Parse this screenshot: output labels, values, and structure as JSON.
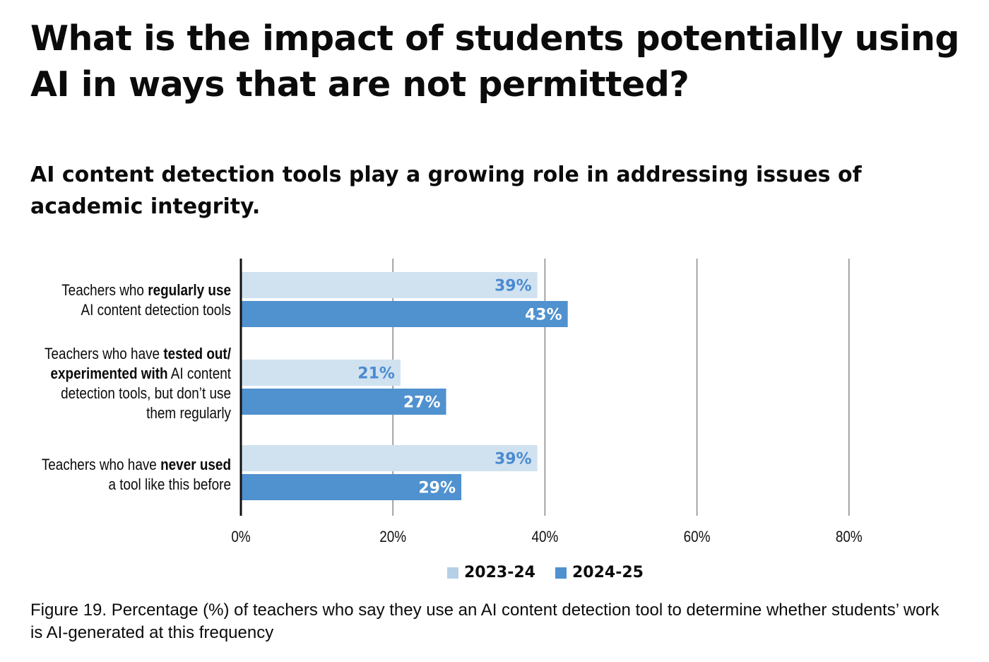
{
  "title": "What is the impact of students potentially using AI in ways that are not permitted?",
  "subtitle": "AI content detection tools play a growing role in addressing issues of academic integrity.",
  "caption": "Figure 19. Percentage (%) of teachers who say they use an AI content detection tool to determine whether students’ work is AI-generated at this frequency",
  "colors": {
    "series_2023_24": "#d0e2f0",
    "series_2024_25": "#5091cf",
    "legend_2023_24": "#b5cfe6",
    "label_light": "#4a8ad0",
    "label_dark": "#ffffff",
    "grid": "#8a8a8a",
    "axis": "#111111"
  },
  "chart_data": {
    "type": "bar",
    "orientation": "horizontal",
    "categories": [
      "Teachers who regularly use AI content detection tools",
      "Teachers who have tested out/ experimented with AI content detection tools, but don’t use them regularly",
      "Teachers who have never used a tool like this before"
    ],
    "category_label_parts": [
      [
        {
          "text": "Teachers who ",
          "bold": false
        },
        {
          "text": "regularly use",
          "bold": true
        },
        {
          "br": true
        },
        {
          "text": "AI content detection tools",
          "bold": false
        }
      ],
      [
        {
          "text": "Teachers who have ",
          "bold": false
        },
        {
          "text": "tested out/",
          "bold": true
        },
        {
          "br": true
        },
        {
          "text": "experimented with",
          "bold": true
        },
        {
          "text": " AI content",
          "bold": false
        },
        {
          "br": true
        },
        {
          "text": "detection tools, but don’t use",
          "bold": false
        },
        {
          "br": true
        },
        {
          "text": "them regularly",
          "bold": false
        }
      ],
      [
        {
          "text": "Teachers who have ",
          "bold": false
        },
        {
          "text": "never used",
          "bold": true
        },
        {
          "br": true
        },
        {
          "text": "a tool like this before",
          "bold": false
        }
      ]
    ],
    "series": [
      {
        "name": "2023-24",
        "values": [
          39,
          21,
          39
        ]
      },
      {
        "name": "2024-25",
        "values": [
          43,
          27,
          29
        ]
      }
    ],
    "value_labels": [
      [
        "39%",
        "21%",
        "39%"
      ],
      [
        "43%",
        "27%",
        "29%"
      ]
    ],
    "xlim": [
      0,
      80
    ],
    "xticks": [
      0,
      20,
      40,
      60,
      80
    ],
    "xtick_labels": [
      "0%",
      "20%",
      "40%",
      "60%",
      "80%"
    ],
    "grid": true,
    "legend_position": "bottom"
  }
}
